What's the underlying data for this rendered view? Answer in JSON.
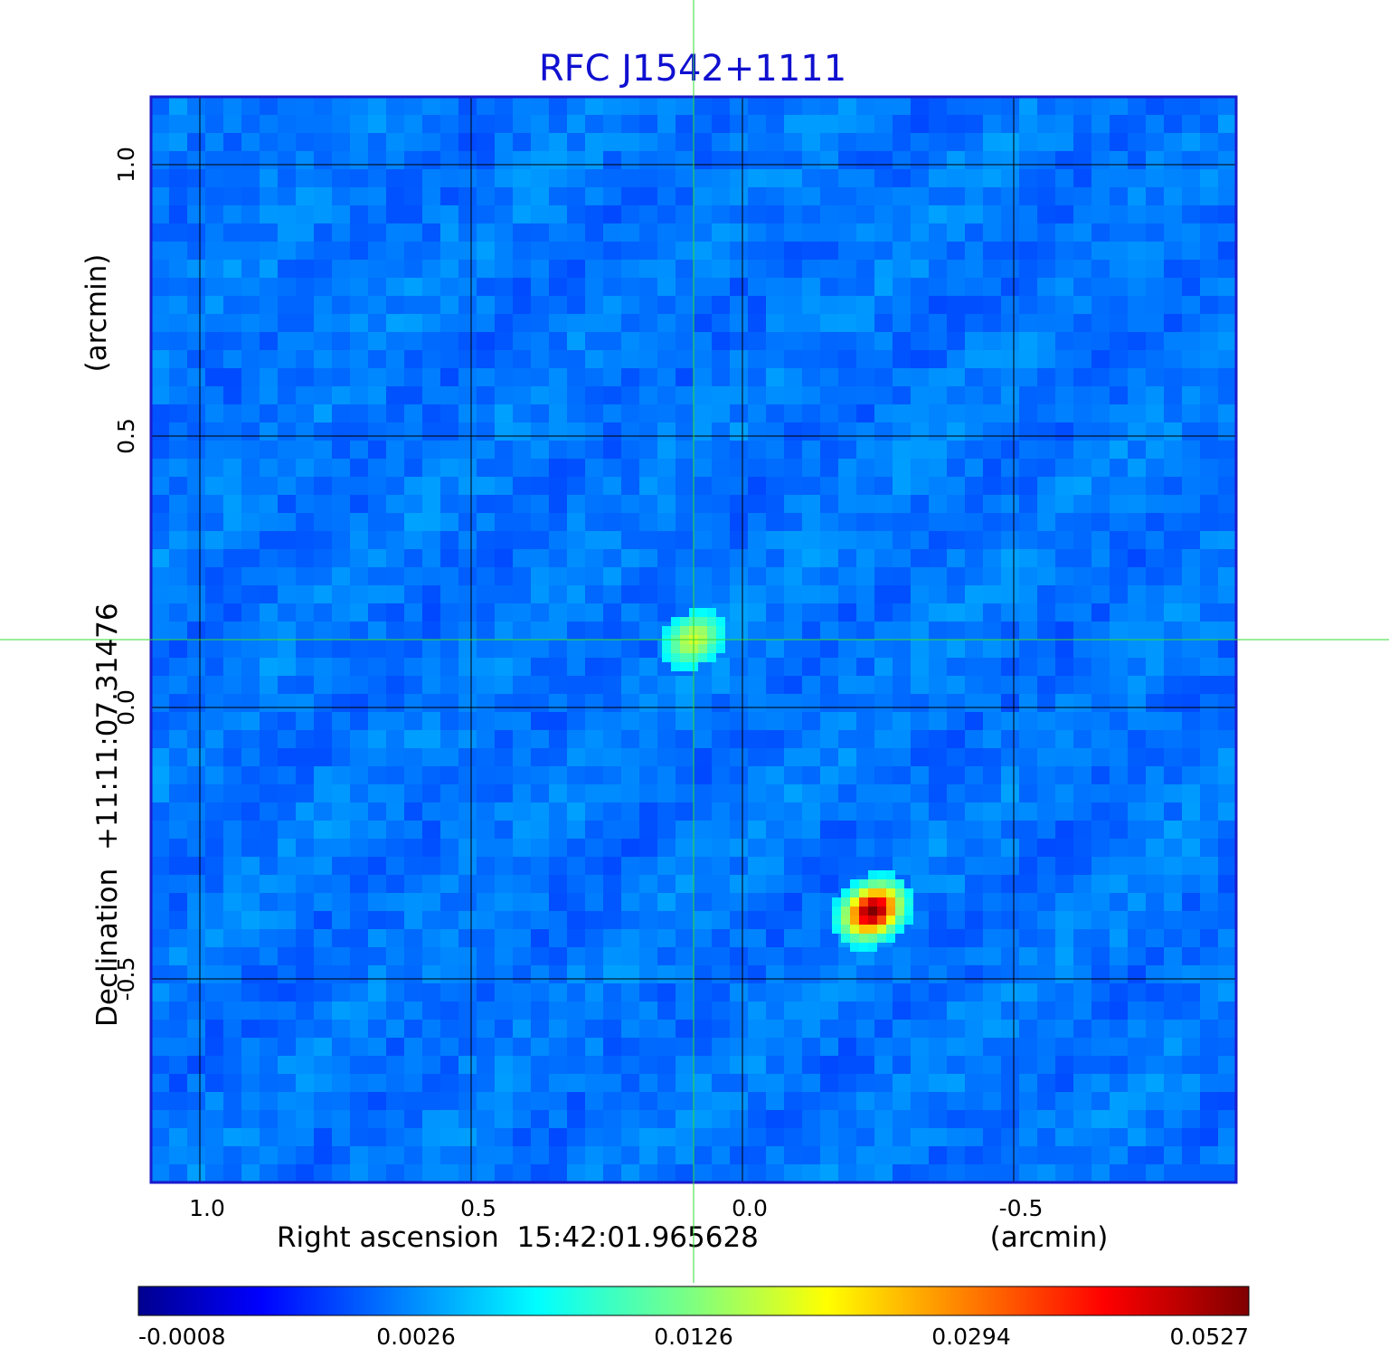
{
  "chart_data": {
    "type": "heatmap",
    "title": "RFC J1542+1111",
    "title_color": "#1010d0",
    "xlabel": "Right ascension  15:42:01.965628",
    "xlabel_unit": "(arcmin)",
    "ylabel": "Declination  +11:11:07.31476",
    "ylabel_unit": "(arcmin)",
    "x_axis_direction": "decreasing-right",
    "xlim": [
      1.09,
      -0.91
    ],
    "ylim": [
      -0.875,
      1.125
    ],
    "x_ticks": [
      1.0,
      0.5,
      0.0,
      -0.5
    ],
    "x_tick_labels": [
      "1.0",
      "0.5",
      "0.0",
      "-0.5"
    ],
    "y_ticks": [
      1.0,
      0.5,
      0.0,
      -0.5
    ],
    "y_tick_labels": [
      "1.0",
      "0.5",
      "0.0",
      "-0.5"
    ],
    "grid": true,
    "crosshair": {
      "x": 0.09,
      "y": 0.125,
      "color": "#33dd33"
    },
    "sources": [
      {
        "x": 0.09,
        "y": 0.125,
        "peak": 0.02
      },
      {
        "x": -0.24,
        "y": -0.375,
        "peak": 0.0527
      }
    ],
    "background_level": 0.0015,
    "colorbar": {
      "colormap": "jet",
      "tick_labels": [
        "-0.0008",
        "0.0026",
        "0.0126",
        "0.0294",
        "0.0527"
      ],
      "tick_values": [
        -0.0008,
        0.0026,
        0.0126,
        0.0294,
        0.0527
      ]
    }
  }
}
